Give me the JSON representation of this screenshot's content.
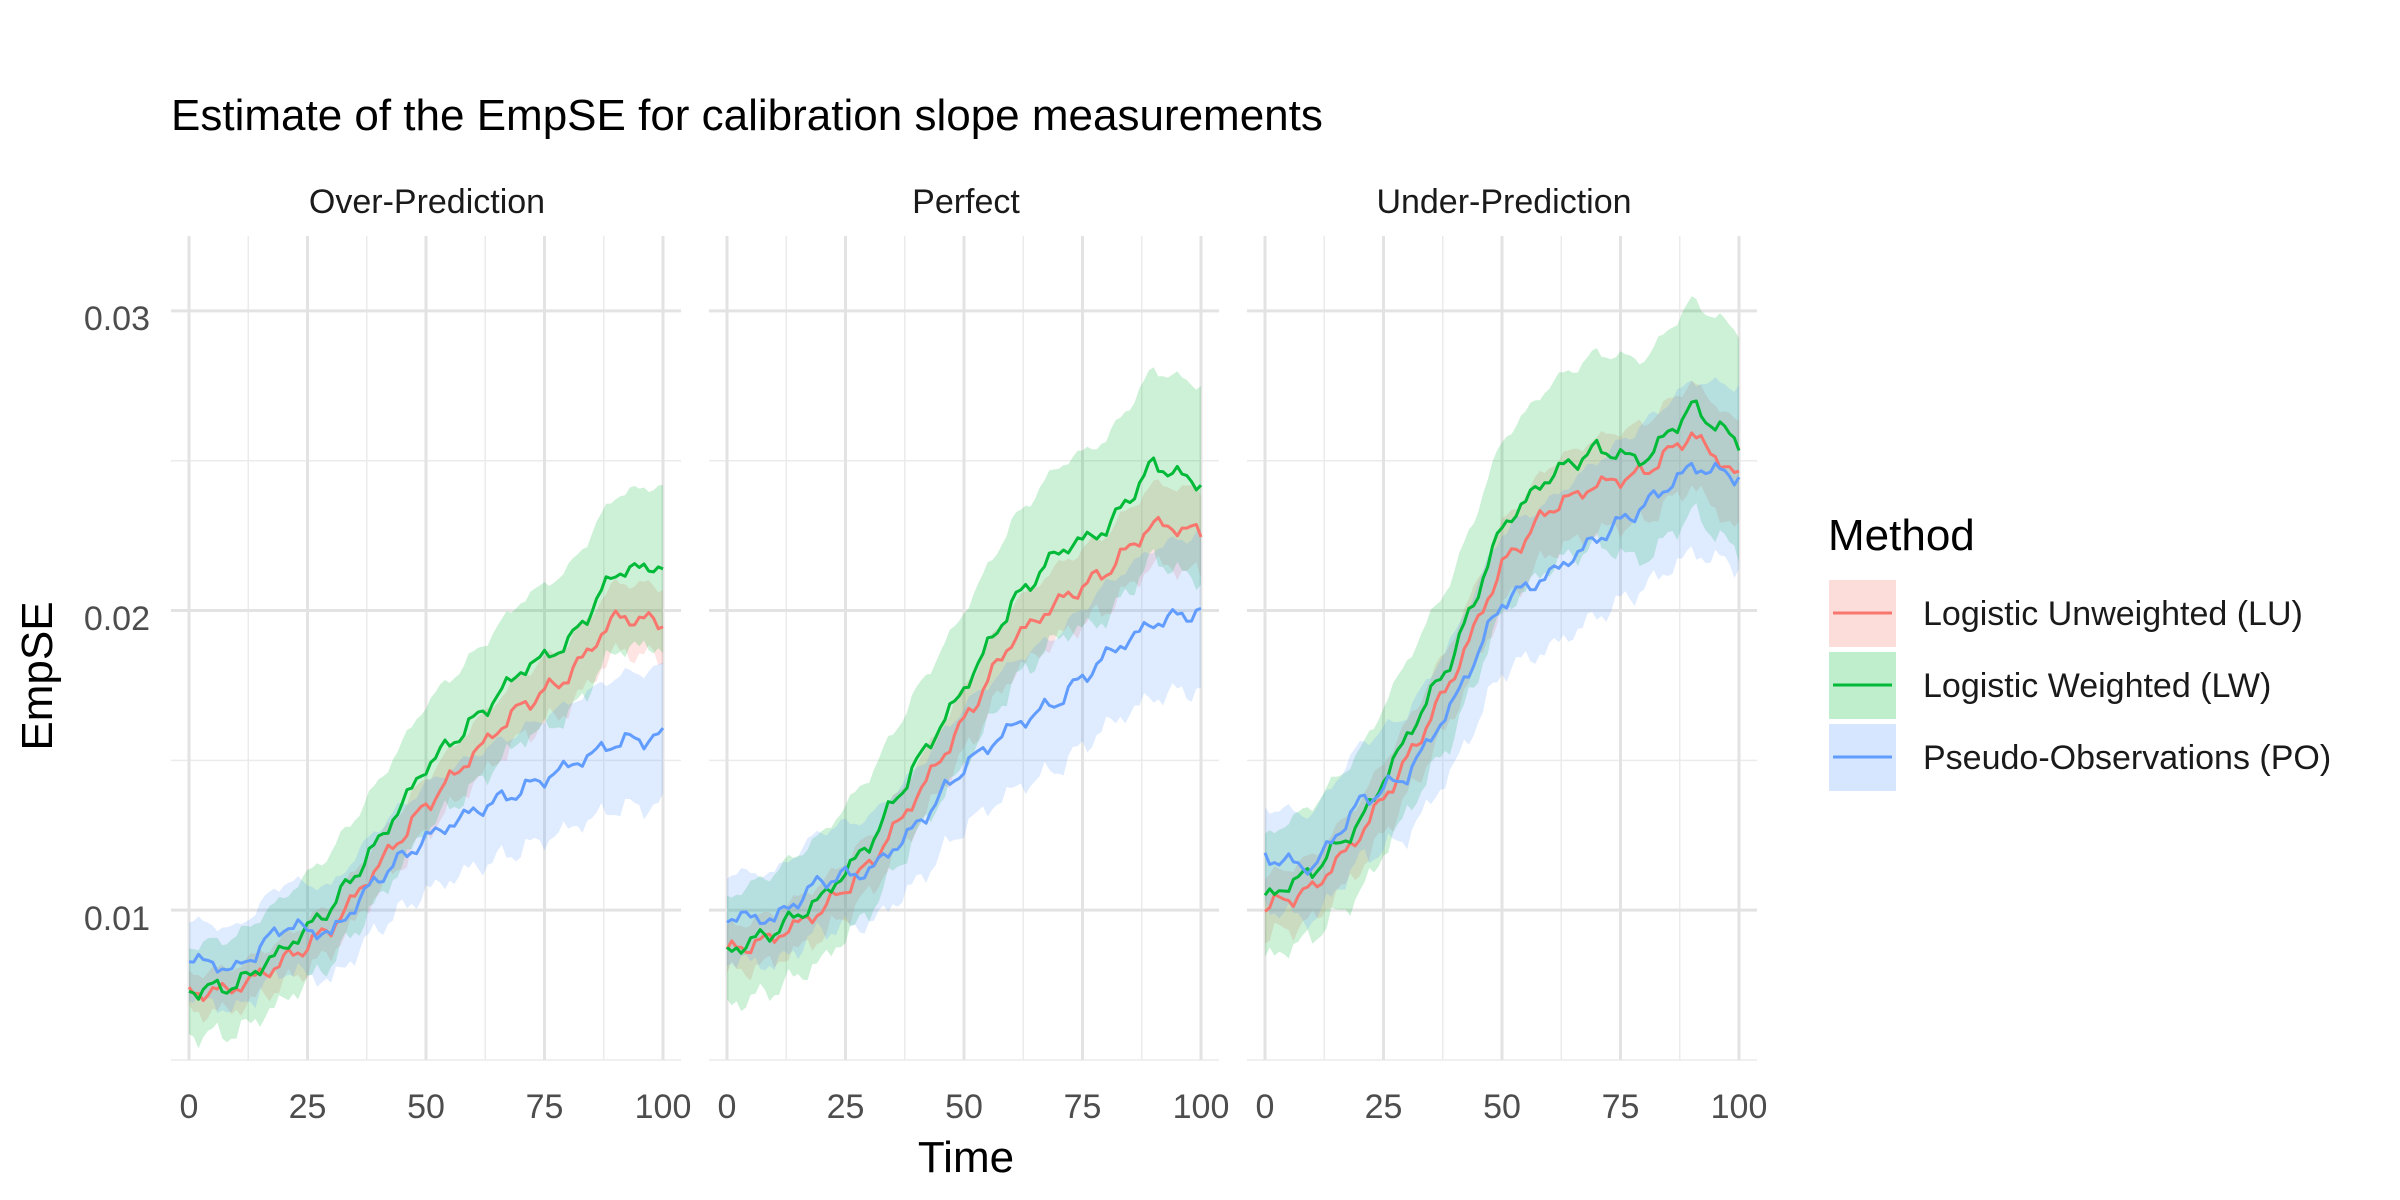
{
  "chart_data": {
    "type": "line",
    "title": "Estimate of the EmpSE for calibration slope measurements",
    "xlabel": "Time",
    "ylabel": "EmpSE",
    "xlim": [
      0,
      100
    ],
    "ylim": [
      0.005,
      0.0325
    ],
    "x_ticks": [
      0,
      25,
      50,
      75,
      100
    ],
    "x_tick_labels": [
      "0",
      "25",
      "50",
      "75",
      "100"
    ],
    "y_ticks": [
      0.01,
      0.02,
      0.03
    ],
    "y_tick_labels": [
      "0.01",
      "0.02",
      "0.03"
    ],
    "grid": true,
    "bands": "shaded confidence interval around each line",
    "legend": {
      "title": "Method",
      "position": "right",
      "entries": [
        {
          "key": "LU",
          "label": "Logistic Unweighted (LU)",
          "color": "#F8766D"
        },
        {
          "key": "LW",
          "label": "Logistic Weighted (LW)",
          "color": "#00BA38"
        },
        {
          "key": "PO",
          "label": "Pseudo-Observations (PO)",
          "color": "#619CFF"
        }
      ]
    },
    "x": [
      0,
      10,
      20,
      30,
      40,
      50,
      60,
      70,
      80,
      90,
      100
    ],
    "panels": [
      {
        "name": "Over-Prediction",
        "series": [
          {
            "key": "LU",
            "values": [
              0.0072,
              0.0074,
              0.0083,
              0.0094,
              0.0115,
              0.0135,
              0.0152,
              0.0168,
              0.0178,
              0.0198,
              0.0196
            ],
            "half_width": 0.0012
          },
          {
            "key": "LW",
            "values": [
              0.0073,
              0.0075,
              0.0087,
              0.0101,
              0.0123,
              0.0148,
              0.0163,
              0.018,
              0.0189,
              0.0213,
              0.0215
            ],
            "half_width": 0.0027
          },
          {
            "key": "PO",
            "values": [
              0.0084,
              0.008,
              0.0095,
              0.0092,
              0.0111,
              0.0124,
              0.0133,
              0.014,
              0.0148,
              0.0156,
              0.0158
            ],
            "half_width": 0.0023
          }
        ]
      },
      {
        "name": "Perfect",
        "series": [
          {
            "key": "LU",
            "values": [
              0.0086,
              0.0091,
              0.01,
              0.0115,
              0.0138,
              0.0163,
              0.019,
              0.0203,
              0.0213,
              0.0229,
              0.0226
            ],
            "half_width": 0.0014
          },
          {
            "key": "LW",
            "values": [
              0.0086,
              0.0093,
              0.0104,
              0.0122,
              0.0149,
              0.0174,
              0.0202,
              0.022,
              0.0227,
              0.0249,
              0.0242
            ],
            "half_width": 0.0033
          },
          {
            "key": "PO",
            "values": [
              0.0098,
              0.0097,
              0.011,
              0.0113,
              0.0128,
              0.0148,
              0.0161,
              0.017,
              0.0185,
              0.0196,
              0.02
            ],
            "half_width": 0.0026
          }
        ]
      },
      {
        "name": "Under-Prediction",
        "series": [
          {
            "key": "LU",
            "values": [
              0.0101,
              0.0107,
              0.0125,
              0.015,
              0.0179,
              0.0215,
              0.0234,
              0.0242,
              0.0246,
              0.0259,
              0.0244
            ],
            "half_width": 0.0018
          },
          {
            "key": "LW",
            "values": [
              0.0104,
              0.0113,
              0.0129,
              0.0158,
              0.0186,
              0.0228,
              0.0245,
              0.0254,
              0.025,
              0.0268,
              0.0256
            ],
            "half_width": 0.0037
          },
          {
            "key": "PO",
            "values": [
              0.0118,
              0.0114,
              0.0136,
              0.0145,
              0.017,
              0.0203,
              0.0212,
              0.0224,
              0.0235,
              0.0248,
              0.0245
            ],
            "half_width": 0.003
          }
        ]
      }
    ]
  }
}
